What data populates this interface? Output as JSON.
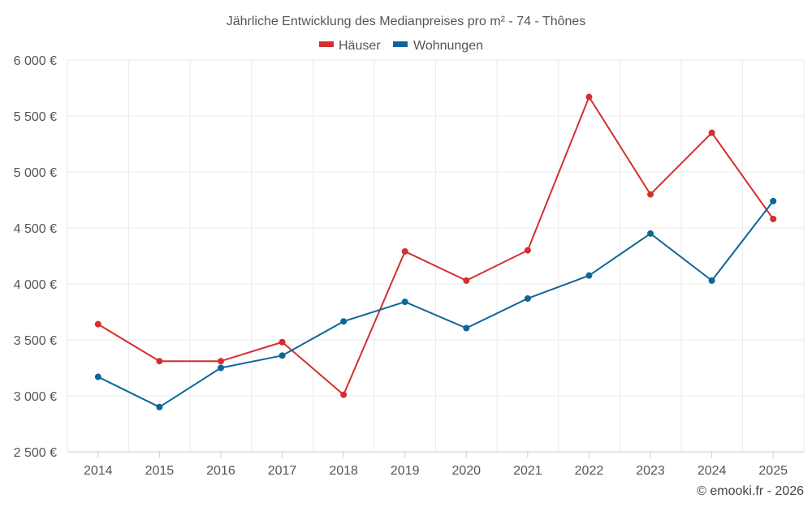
{
  "chart_data": {
    "type": "line",
    "title": "Jährliche Entwicklung des Medianpreises pro m² - 74 - Thônes",
    "categories": [
      "2014",
      "2015",
      "2016",
      "2017",
      "2018",
      "2019",
      "2020",
      "2021",
      "2022",
      "2023",
      "2024",
      "2025"
    ],
    "series": [
      {
        "name": "Häuser",
        "color": "#d32f2f",
        "values": [
          3640,
          3310,
          3310,
          3480,
          3010,
          4290,
          4030,
          4300,
          5670,
          4800,
          5350,
          4580
        ]
      },
      {
        "name": "Wohnungen",
        "color": "#0d6698",
        "values": [
          3170,
          2900,
          3250,
          3360,
          3665,
          3840,
          3605,
          3870,
          4075,
          4450,
          4030,
          4740
        ]
      }
    ],
    "ylim": [
      2500,
      6000
    ],
    "yticks": [
      2500,
      3000,
      3500,
      4000,
      4500,
      5000,
      5500,
      6000
    ],
    "ytick_labels": [
      "2 500 €",
      "3 000 €",
      "3 500 €",
      "4 000 €",
      "4 500 €",
      "5 000 €",
      "5 500 €",
      "6 000 €"
    ],
    "xlabel": "",
    "ylabel": "",
    "legend_position": "top-center",
    "grid": true,
    "credit": "© emooki.fr - 2026"
  }
}
